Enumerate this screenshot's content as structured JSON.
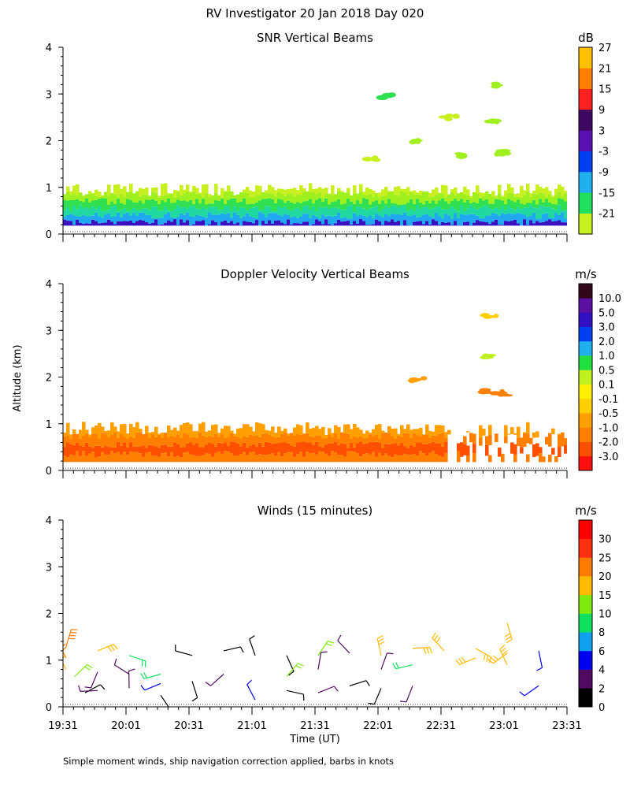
{
  "figure": {
    "title": "RV Investigator  20 Jan 2018 Day 020",
    "ylabel": "Altitude (km)",
    "xlabel": "Time (UT)",
    "footnote": "Simple moment winds, ship navigation correction applied, barbs in knots"
  },
  "chart_data": [
    {
      "type": "heatmap",
      "title": "SNR Vertical Beams",
      "xlabel": "Time (UT)",
      "ylabel": "Altitude (km)",
      "x_ticks": [
        "19:31",
        "20:01",
        "20:31",
        "21:01",
        "21:31",
        "22:01",
        "22:31",
        "23:01",
        "23:31"
      ],
      "y_ticks": [
        0,
        1,
        2,
        3,
        4
      ],
      "ylim": [
        0,
        4
      ],
      "colorbar": {
        "unit": "dB",
        "levels": [
          "-21",
          "-15",
          "-9",
          "-3",
          "3",
          "9",
          "15",
          "21",
          "27"
        ],
        "colors": [
          "#c8f020",
          "#20e060",
          "#20b0f0",
          "#0040f0",
          "#5a10b0",
          "#3c0860",
          "#ff2020",
          "#ff8000",
          "#ffc000"
        ]
      },
      "layers": [
        {
          "alt_km": 0.25,
          "color": "#3a10c0"
        },
        {
          "alt_km": 0.4,
          "color": "#20a8f0"
        },
        {
          "alt_km": 0.55,
          "color": "#20d8a0"
        },
        {
          "alt_km": 0.7,
          "color": "#30e050"
        },
        {
          "alt_km": 0.85,
          "color": "#a0f020"
        },
        {
          "alt_km": 1.0,
          "color": "#c8f020"
        }
      ],
      "patches": [
        {
          "time": "21:57",
          "alt_km": 1.6,
          "color": "#c8f020"
        },
        {
          "time": "22:20",
          "alt_km": 2.0,
          "color": "#a0f020"
        },
        {
          "time": "22:35",
          "alt_km": 2.5,
          "color": "#c8f020"
        },
        {
          "time": "22:40",
          "alt_km": 1.7,
          "color": "#a0f020"
        },
        {
          "time": "22:55",
          "alt_km": 3.2,
          "color": "#a0f020"
        },
        {
          "time": "22:55",
          "alt_km": 2.4,
          "color": "#a0f020"
        },
        {
          "time": "23:00",
          "alt_km": 1.75,
          "color": "#a0f020"
        },
        {
          "time": "22:05",
          "alt_km": 2.95,
          "color": "#30e050"
        }
      ]
    },
    {
      "type": "heatmap",
      "title": "Doppler Velocity Vertical Beams",
      "xlabel": "Time (UT)",
      "ylabel": "Altitude (km)",
      "x_ticks": [
        "19:31",
        "20:01",
        "20:31",
        "21:01",
        "21:31",
        "22:01",
        "22:31",
        "23:01",
        "23:31"
      ],
      "y_ticks": [
        0,
        1,
        2,
        3,
        4
      ],
      "ylim": [
        0,
        4
      ],
      "colorbar": {
        "unit": "m/s",
        "levels": [
          "-3.0",
          "-2.0",
          "-1.0",
          "-0.5",
          "-0.1",
          "0.1",
          "0.5",
          "1.0",
          "2.0",
          "3.0",
          "5.0",
          "10.0"
        ],
        "colors": [
          "#ff1010",
          "#ff5000",
          "#ff8000",
          "#ffa000",
          "#ffd000",
          "#fff000",
          "#c0f020",
          "#20e040",
          "#20b0f0",
          "#0040f0",
          "#3010c0",
          "#5a10a0",
          "#300818"
        ]
      },
      "layers": [
        {
          "alt_km": 0.35,
          "color": "#ff8000"
        },
        {
          "alt_km": 0.55,
          "color": "#ff5000"
        },
        {
          "alt_km": 0.75,
          "color": "#ff8000"
        },
        {
          "alt_km": 0.95,
          "color": "#ffa000"
        }
      ],
      "patches": [
        {
          "time": "22:55",
          "alt_km": 3.3,
          "color": "#ffd000"
        },
        {
          "time": "22:55",
          "alt_km": 2.45,
          "color": "#c0f020"
        },
        {
          "time": "22:20",
          "alt_km": 1.95,
          "color": "#ffa000"
        },
        {
          "time": "22:50",
          "alt_km": 1.7,
          "color": "#ff8000"
        },
        {
          "time": "23:00",
          "alt_km": 1.65,
          "color": "#ff8000"
        }
      ]
    },
    {
      "type": "scatter",
      "title": "Winds (15 minutes)",
      "xlabel": "Time (UT)",
      "ylabel": "Altitude (km)",
      "x_ticks": [
        "19:31",
        "20:01",
        "20:31",
        "21:01",
        "21:31",
        "22:01",
        "22:31",
        "23:01",
        "23:31"
      ],
      "y_ticks": [
        0,
        1,
        2,
        3,
        4
      ],
      "ylim": [
        0,
        4
      ],
      "colorbar": {
        "unit": "m/s",
        "levels": [
          "0",
          "2",
          "4",
          "6",
          "8",
          "10",
          "15",
          "20",
          "25",
          "30"
        ],
        "colors": [
          "#000000",
          "#500a60",
          "#0000f0",
          "#10a0f0",
          "#10e060",
          "#80ea10",
          "#ffbb00",
          "#ff7a00",
          "#ff3010",
          "#ff0000"
        ]
      },
      "barbs": [
        {
          "time": "19:31",
          "alt_km": 1.3,
          "speed": 20
        },
        {
          "time": "19:31",
          "alt_km": 1.05,
          "speed": 20
        },
        {
          "time": "19:31",
          "alt_km": 0.8,
          "speed": 15
        },
        {
          "time": "19:35",
          "alt_km": 0.65,
          "speed": 10
        },
        {
          "time": "19:40",
          "alt_km": 0.3,
          "speed": 0
        },
        {
          "time": "19:46",
          "alt_km": 1.2,
          "speed": 15
        },
        {
          "time": "19:46",
          "alt_km": 0.75,
          "speed": 2
        },
        {
          "time": "19:46",
          "alt_km": 0.35,
          "speed": 2
        },
        {
          "time": "20:01",
          "alt_km": 1.1,
          "speed": 8
        },
        {
          "time": "20:01",
          "alt_km": 0.7,
          "speed": 2
        },
        {
          "time": "20:01",
          "alt_km": 0.4,
          "speed": 2
        },
        {
          "time": "20:16",
          "alt_km": 0.7,
          "speed": 8
        },
        {
          "time": "20:16",
          "alt_km": 0.5,
          "speed": 4
        },
        {
          "time": "20:16",
          "alt_km": 0.25,
          "speed": 0
        },
        {
          "time": "20:31",
          "alt_km": 1.1,
          "speed": 0
        },
        {
          "time": "20:31",
          "alt_km": 0.55,
          "speed": 0
        },
        {
          "time": "20:46",
          "alt_km": 1.2,
          "speed": 0
        },
        {
          "time": "20:46",
          "alt_km": 0.7,
          "speed": 2
        },
        {
          "time": "21:01",
          "alt_km": 1.1,
          "speed": 0
        },
        {
          "time": "21:01",
          "alt_km": 0.15,
          "speed": 4
        },
        {
          "time": "21:16",
          "alt_km": 1.1,
          "speed": 0
        },
        {
          "time": "21:16",
          "alt_km": 0.65,
          "speed": 10
        },
        {
          "time": "21:16",
          "alt_km": 0.35,
          "speed": 0
        },
        {
          "time": "21:31",
          "alt_km": 1.1,
          "speed": 10
        },
        {
          "time": "21:31",
          "alt_km": 0.8,
          "speed": 2
        },
        {
          "time": "21:31",
          "alt_km": 0.3,
          "speed": 2
        },
        {
          "time": "21:46",
          "alt_km": 1.15,
          "speed": 2
        },
        {
          "time": "21:46",
          "alt_km": 0.45,
          "speed": 0
        },
        {
          "time": "22:01",
          "alt_km": 1.1,
          "speed": 15
        },
        {
          "time": "22:01",
          "alt_km": 0.8,
          "speed": 2
        },
        {
          "time": "22:01",
          "alt_km": 0.4,
          "speed": 0
        },
        {
          "time": "22:16",
          "alt_km": 1.25,
          "speed": 15
        },
        {
          "time": "22:16",
          "alt_km": 0.9,
          "speed": 8
        },
        {
          "time": "22:16",
          "alt_km": 0.45,
          "speed": 2
        },
        {
          "time": "22:31",
          "alt_km": 1.2,
          "speed": 15
        },
        {
          "time": "22:46",
          "alt_km": 1.25,
          "speed": 15
        },
        {
          "time": "22:46",
          "alt_km": 1.05,
          "speed": 15
        },
        {
          "time": "23:01",
          "alt_km": 1.8,
          "speed": 15
        },
        {
          "time": "23:01",
          "alt_km": 1.15,
          "speed": 15
        },
        {
          "time": "23:01",
          "alt_km": 0.9,
          "speed": 15
        },
        {
          "time": "23:16",
          "alt_km": 1.2,
          "speed": 4
        },
        {
          "time": "23:16",
          "alt_km": 0.45,
          "speed": 4
        }
      ]
    }
  ]
}
